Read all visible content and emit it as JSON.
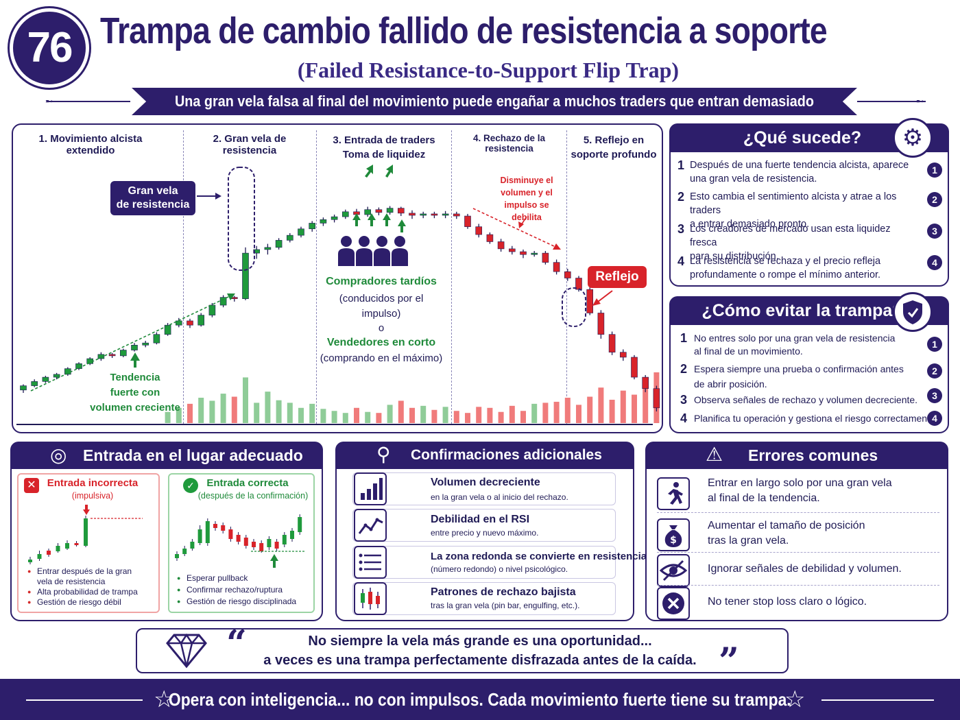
{
  "header": {
    "number": "76",
    "title": "Trampa de cambio fallido de resistencia a soporte",
    "subtitle": "(Failed Resistance-to-Support Flip Trap)",
    "banner": "Una gran vela falsa al final del movimiento puede engañar a muchos traders que entran demasiado pronto."
  },
  "chart": {
    "phases": [
      "1. Movimiento alcista extendido",
      "2. Gran vela de resistencia",
      "3. Entrada de traders\nToma de liquidez",
      "4. Rechazo de la resistencia",
      "5. Reflejo en\nsoporte profundo"
    ],
    "callout_big_candle": "Gran vela\nde resistencia",
    "trend_note": "Tendencia\nfuerte con\nvolumen creciente",
    "late_buyers": "Compradores tardíos",
    "late_buyers_sub": "(conducidos por el\nimpulso)",
    "or_word": "o",
    "short_sellers": "Vendedores en corto",
    "short_sellers_sub": "(comprando en el máximo)",
    "volume_note": "Disminuye el\nvolumen y el\nimpulso se debilita",
    "reflejo": "Reflejo",
    "colors": {
      "bull": "#1f9a3c",
      "bear": "#d8232a",
      "bull_vol": "#8fcc98",
      "bear_vol": "#f07b7b"
    }
  },
  "chart_data": {
    "type": "candlestick",
    "candles": [
      [
        100,
        106,
        96,
        108
      ],
      [
        106,
        112,
        104,
        115
      ],
      [
        112,
        118,
        110,
        120
      ],
      [
        118,
        122,
        115,
        124
      ],
      [
        122,
        130,
        120,
        132
      ],
      [
        130,
        137,
        128,
        139
      ],
      [
        137,
        144,
        135,
        146
      ],
      [
        144,
        150,
        141,
        153
      ],
      [
        150,
        148,
        145,
        152
      ],
      [
        148,
        156,
        146,
        158
      ],
      [
        156,
        163,
        154,
        166
      ],
      [
        163,
        166,
        160,
        169
      ],
      [
        166,
        178,
        164,
        181
      ],
      [
        178,
        191,
        176,
        194
      ],
      [
        191,
        197,
        188,
        201
      ],
      [
        197,
        191,
        187,
        200
      ],
      [
        191,
        205,
        189,
        208
      ],
      [
        205,
        219,
        202,
        222
      ],
      [
        219,
        230,
        216,
        233
      ],
      [
        230,
        228,
        224,
        232
      ],
      [
        228,
        292,
        226,
        300
      ],
      [
        292,
        297,
        284,
        302
      ],
      [
        297,
        300,
        290,
        305
      ],
      [
        300,
        310,
        297,
        313
      ],
      [
        310,
        317,
        307,
        320
      ],
      [
        317,
        326,
        314,
        329
      ],
      [
        326,
        334,
        322,
        337
      ],
      [
        334,
        339,
        330,
        342
      ],
      [
        339,
        343,
        335,
        346
      ],
      [
        343,
        350,
        340,
        353
      ],
      [
        350,
        346,
        342,
        354
      ],
      [
        346,
        353,
        343,
        357
      ],
      [
        353,
        349,
        345,
        356
      ],
      [
        349,
        355,
        346,
        358
      ],
      [
        355,
        348,
        344,
        357
      ],
      [
        348,
        345,
        340,
        352
      ],
      [
        345,
        347,
        341,
        350
      ],
      [
        347,
        345,
        341,
        350
      ],
      [
        345,
        347,
        341,
        351
      ],
      [
        347,
        344,
        340,
        350
      ],
      [
        344,
        329,
        326,
        347
      ],
      [
        329,
        318,
        314,
        333
      ],
      [
        318,
        308,
        305,
        321
      ],
      [
        308,
        298,
        294,
        312
      ],
      [
        298,
        294,
        290,
        302
      ],
      [
        294,
        290,
        285,
        297
      ],
      [
        290,
        292,
        287,
        295
      ],
      [
        292,
        279,
        276,
        295
      ],
      [
        279,
        266,
        262,
        283
      ],
      [
        266,
        257,
        253,
        270
      ],
      [
        257,
        241,
        238,
        260
      ],
      [
        241,
        208,
        205,
        244
      ],
      [
        208,
        178,
        172,
        212
      ],
      [
        178,
        153,
        149,
        182
      ],
      [
        153,
        146,
        141,
        157
      ],
      [
        146,
        118,
        115,
        149
      ],
      [
        118,
        102,
        97,
        121
      ],
      [
        102,
        75,
        70,
        106
      ]
    ],
    "volume": [
      null,
      null,
      null,
      null,
      null,
      null,
      null,
      null,
      null,
      null,
      null,
      null,
      null,
      22,
      30,
      38,
      50,
      44,
      58,
      52,
      90,
      40,
      62,
      45,
      40,
      30,
      38,
      28,
      24,
      20,
      30,
      22,
      20,
      36,
      44,
      30,
      34,
      26,
      32,
      24,
      20,
      32,
      30,
      22,
      34,
      24,
      38,
      40,
      42,
      50,
      36,
      52,
      70,
      46,
      64,
      56,
      86,
      100
    ]
  },
  "que_sucede": {
    "title": "¿Qué sucede?",
    "items": [
      "Después de una fuerte tendencia alcista, aparece\nuna gran vela de resistencia.",
      "Esto cambia el sentimiento alcista y atrae a los traders\na entrar demasiado pronto.",
      "Los creadores de mercado usan esta liquidez fresca\npara su distribución.",
      "La resistencia se rechaza y el precio refleja\nprofundamente o rompe el mínimo anterior."
    ]
  },
  "evitar": {
    "title": "¿Cómo evitar la trampa?",
    "items": [
      "No entres solo por una gran vela de resistencia\nal final de un movimiento.",
      "Espera siempre una prueba o confirmación antes\nde abrir posición.",
      "Observa señales de rechazo y volumen decreciente.",
      "Planifica tu operación y gestiona el riesgo correctamente."
    ]
  },
  "numbers": [
    "1",
    "2",
    "3",
    "4"
  ],
  "entrada": {
    "title": "Entrada en el lugar adecuado",
    "wrong_title": "Entrada incorrecta",
    "wrong_sub": "(impulsiva)",
    "wrong_points": [
      "Entrar después de la gran\nvela de resistencia",
      "Alta probabilidad de trampa",
      "Gestión de riesgo débil"
    ],
    "right_title": "Entrada correcta",
    "right_sub": "(después de la confirmación)",
    "right_points": [
      "Esperar pullback",
      "Confirmar rechazo/ruptura",
      "Gestión de riesgo disciplinada"
    ]
  },
  "confirmaciones": {
    "title": "Confirmaciones adicionales",
    "items": [
      {
        "title": "Volumen decreciente",
        "sub": "en la gran vela o al inicio del rechazo."
      },
      {
        "title": "Debilidad en el RSI",
        "sub": "entre precio y nuevo máximo."
      },
      {
        "title": "La zona redonda se convierte en resistencia",
        "sub": "(número redondo) o nivel psicológico."
      },
      {
        "title": "Patrones de rechazo bajista",
        "sub": "tras la gran vela (pin bar, engulfing, etc.)."
      }
    ]
  },
  "errores": {
    "title": "Errores comunes",
    "items": [
      "Entrar en largo solo por una gran vela\nal final de la tendencia.",
      "Aumentar el tamaño de posición\ntras la gran vela.",
      "Ignorar señales de debilidad y volumen.",
      "No tener stop loss claro o lógico."
    ]
  },
  "quote": {
    "line1": "No siempre la vela más grande es una oportunidad...",
    "line2": "a veces es una trampa perfectamente disfrazada antes de la caída.",
    "open_mark": "“",
    "close_mark": "”"
  },
  "footer": "Opera con inteligencia... no con impulsos. Cada movimiento fuerte tiene su trampa."
}
